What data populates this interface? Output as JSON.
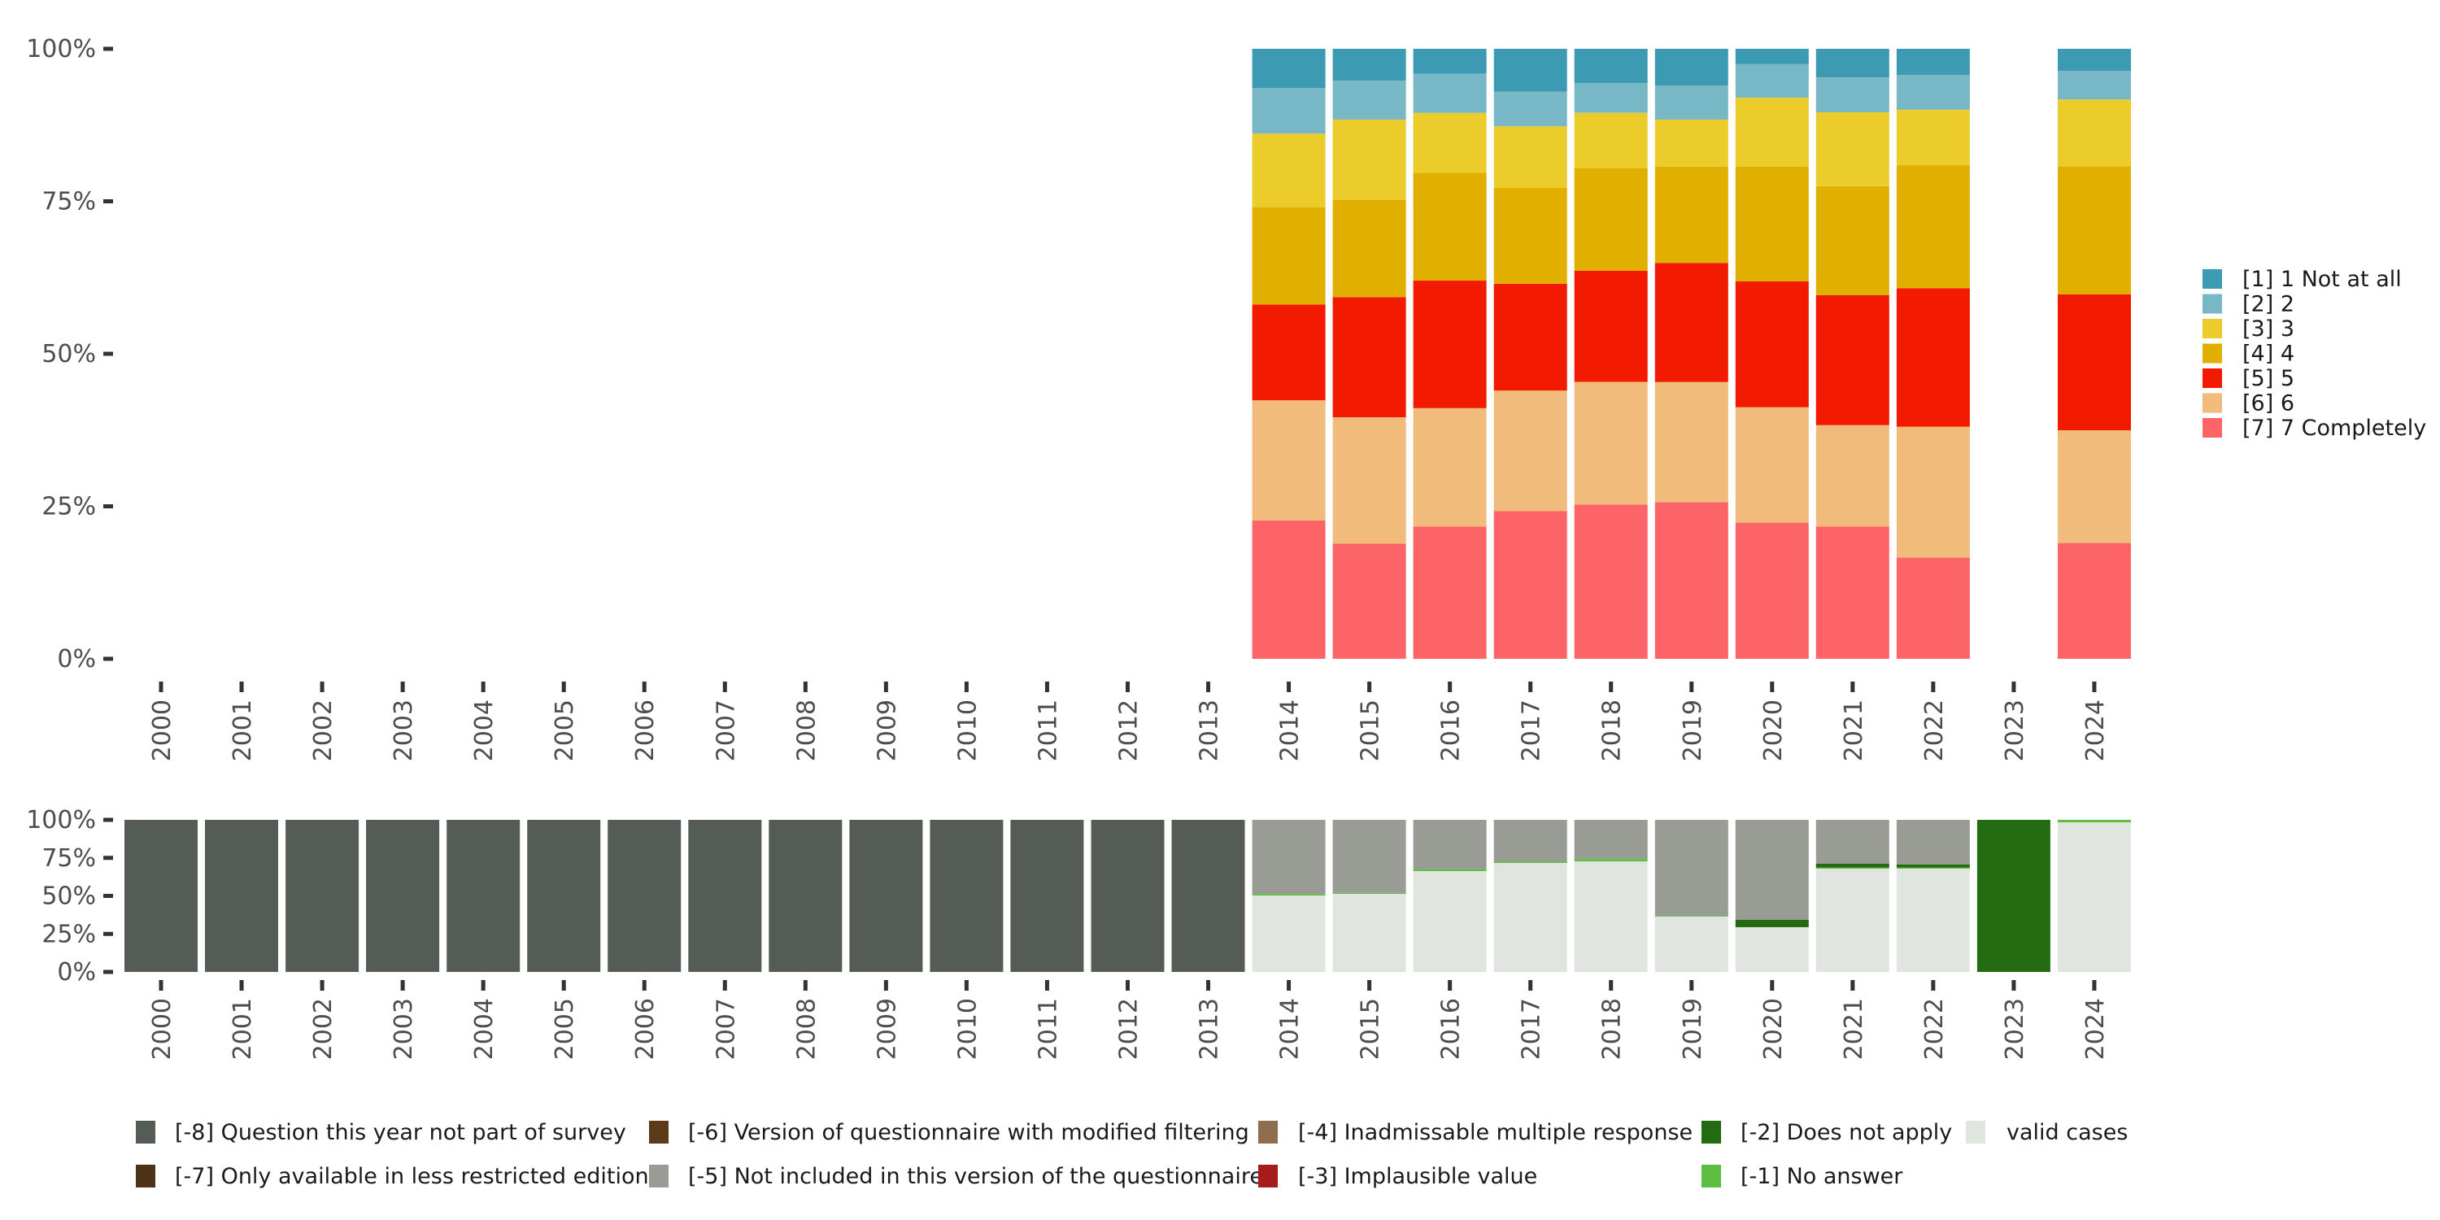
{
  "chart_data": [
    {
      "type": "bar",
      "stacked": true,
      "normalized": true,
      "title": "",
      "xlabel": "",
      "ylabel": "",
      "ylim": [
        0,
        100
      ],
      "yticks": [
        "0%",
        "25%",
        "50%",
        "75%",
        "100%"
      ],
      "grid": false,
      "legend_position": "right",
      "categories": [
        "2000",
        "2001",
        "2002",
        "2003",
        "2004",
        "2005",
        "2006",
        "2007",
        "2008",
        "2009",
        "2010",
        "2011",
        "2012",
        "2013",
        "2014",
        "2015",
        "2016",
        "2017",
        "2018",
        "2019",
        "2020",
        "2021",
        "2022",
        "2023",
        "2024"
      ],
      "series": [
        {
          "name": "[1] 1 Not at all",
          "color": "#3C9AB2",
          "values": [
            null,
            null,
            null,
            null,
            null,
            null,
            null,
            null,
            null,
            null,
            null,
            null,
            null,
            null,
            6.4,
            5.2,
            4.1,
            7.0,
            5.6,
            6.0,
            2.5,
            4.7,
            4.3,
            null,
            3.6
          ]
        },
        {
          "name": "[2] 2",
          "color": "#78B7C5",
          "values": [
            null,
            null,
            null,
            null,
            null,
            null,
            null,
            null,
            null,
            null,
            null,
            null,
            null,
            null,
            7.5,
            6.4,
            6.4,
            5.7,
            4.9,
            5.6,
            5.5,
            5.7,
            5.7,
            null,
            4.7
          ]
        },
        {
          "name": "[3] 3",
          "color": "#EBCC2A",
          "values": [
            null,
            null,
            null,
            null,
            null,
            null,
            null,
            null,
            null,
            null,
            null,
            null,
            null,
            null,
            12.1,
            13.2,
            9.8,
            10.1,
            9.1,
            7.7,
            11.3,
            12.1,
            9.1,
            null,
            11.0
          ]
        },
        {
          "name": "[4] 4",
          "color": "#E1AF00",
          "values": [
            null,
            null,
            null,
            null,
            null,
            null,
            null,
            null,
            null,
            null,
            null,
            null,
            null,
            null,
            15.9,
            15.9,
            17.7,
            15.7,
            16.8,
            15.8,
            18.8,
            17.9,
            20.2,
            null,
            21.0
          ]
        },
        {
          "name": "[5] 5",
          "color": "#F21A00",
          "values": [
            null,
            null,
            null,
            null,
            null,
            null,
            null,
            null,
            null,
            null,
            null,
            null,
            null,
            null,
            15.7,
            19.7,
            20.9,
            17.5,
            18.2,
            19.5,
            20.6,
            21.3,
            22.7,
            null,
            22.3
          ]
        },
        {
          "name": "[6] 6",
          "color": "#F1BB7B",
          "values": [
            null,
            null,
            null,
            null,
            null,
            null,
            null,
            null,
            null,
            null,
            null,
            null,
            null,
            null,
            19.7,
            20.7,
            19.4,
            19.8,
            20.1,
            19.7,
            18.9,
            16.6,
            21.5,
            null,
            18.5
          ]
        },
        {
          "name": "[7] 7 Completely",
          "color": "#FD6467",
          "values": [
            null,
            null,
            null,
            null,
            null,
            null,
            null,
            null,
            null,
            null,
            null,
            null,
            null,
            null,
            22.7,
            18.9,
            21.7,
            24.2,
            25.3,
            25.7,
            22.3,
            21.7,
            16.6,
            null,
            19.0
          ]
        }
      ]
    },
    {
      "type": "bar",
      "stacked": true,
      "normalized": true,
      "title": "",
      "xlabel": "",
      "ylabel": "",
      "ylim": [
        0,
        100
      ],
      "yticks": [
        "0%",
        "25%",
        "50%",
        "75%",
        "100%"
      ],
      "grid": false,
      "legend_position": "bottom",
      "categories": [
        "2000",
        "2001",
        "2002",
        "2003",
        "2004",
        "2005",
        "2006",
        "2007",
        "2008",
        "2009",
        "2010",
        "2011",
        "2012",
        "2013",
        "2014",
        "2015",
        "2016",
        "2017",
        "2018",
        "2019",
        "2020",
        "2021",
        "2022",
        "2023",
        "2024"
      ],
      "series": [
        {
          "name": "[-8] Question this year not part of survey",
          "color": "#555B55",
          "values": [
            100,
            100,
            100,
            100,
            100,
            100,
            100,
            100,
            100,
            100,
            100,
            100,
            100,
            100,
            0,
            0,
            0,
            0,
            0,
            0,
            0,
            0,
            0,
            0,
            0
          ]
        },
        {
          "name": "[-7] Only available in less restricted edition",
          "color": "#4C3318",
          "values": [
            0,
            0,
            0,
            0,
            0,
            0,
            0,
            0,
            0,
            0,
            0,
            0,
            0,
            0,
            0,
            0,
            0,
            0,
            0,
            0,
            0,
            0,
            0,
            0,
            0
          ]
        },
        {
          "name": "[-6] Version of questionnaire with modified filtering",
          "color": "#5C3A1A",
          "values": [
            0,
            0,
            0,
            0,
            0,
            0,
            0,
            0,
            0,
            0,
            0,
            0,
            0,
            0,
            0,
            0,
            0,
            0,
            0,
            0,
            0,
            0,
            0,
            0,
            0
          ]
        },
        {
          "name": "[-5] Not included in this version of the questionnaire",
          "color": "#989C94",
          "values": [
            0,
            0,
            0,
            0,
            0,
            0,
            0,
            0,
            0,
            0,
            0,
            0,
            0,
            0,
            48.7,
            48.1,
            32.4,
            27.3,
            25.7,
            63.1,
            65.8,
            28.9,
            29.4,
            0,
            0
          ]
        },
        {
          "name": "[-4] Inadmissable multiple response",
          "color": "#8F6E4F",
          "values": [
            0,
            0,
            0,
            0,
            0,
            0,
            0,
            0,
            0,
            0,
            0,
            0,
            0,
            0,
            0,
            0,
            0,
            0,
            0,
            0,
            0,
            0,
            0,
            0,
            0
          ]
        },
        {
          "name": "[-3] Implausible value",
          "color": "#A61C1C",
          "values": [
            0,
            0,
            0,
            0,
            0,
            0,
            0,
            0,
            0,
            0,
            0,
            0,
            0,
            0,
            0,
            0,
            0,
            0,
            0,
            0,
            0,
            0,
            0,
            0,
            0
          ]
        },
        {
          "name": "[-2] Does not apply",
          "color": "#226B10",
          "values": [
            0,
            0,
            0,
            0,
            0,
            0,
            0,
            0,
            0,
            0,
            0,
            0,
            0,
            0,
            0,
            0,
            0,
            0,
            0,
            0,
            4.8,
            2.5,
            2.0,
            100,
            0
          ]
        },
        {
          "name": "[-1] No answer",
          "color": "#5EBE42",
          "values": [
            0,
            0,
            0,
            0,
            0,
            0,
            0,
            0,
            0,
            0,
            0,
            0,
            0,
            0,
            1.0,
            0.6,
            1.3,
            1.0,
            1.6,
            0.5,
            0,
            0.7,
            0.7,
            0,
            1.6
          ]
        },
        {
          "name": "valid cases",
          "color": "#E1E5E0",
          "values": [
            0,
            0,
            0,
            0,
            0,
            0,
            0,
            0,
            0,
            0,
            0,
            0,
            0,
            0,
            50.3,
            51.3,
            66.3,
            71.7,
            72.7,
            36.4,
            29.4,
            67.9,
            67.9,
            0,
            98.4
          ]
        }
      ],
      "legend_order": [
        "[-8] Question this year not part of survey",
        "[-6] Version of questionnaire with modified filtering",
        "[-4] Inadmissable multiple response",
        "[-2] Does not apply",
        "valid cases",
        "[-7] Only available in less restricted edition",
        "[-5] Not included in this version of the questionnaire",
        "[-3] Implausible value",
        "[-1] No answer"
      ]
    }
  ]
}
